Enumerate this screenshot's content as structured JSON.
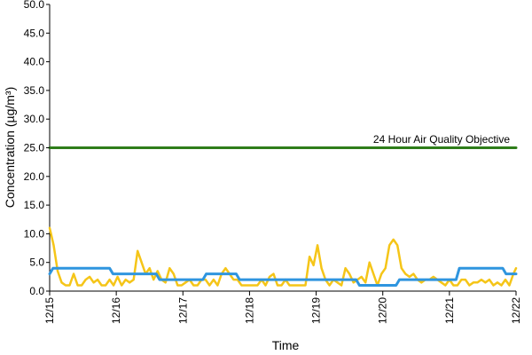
{
  "chart_data": {
    "type": "line",
    "title": "",
    "xlabel": "Time",
    "ylabel": "Concentration (µg/m³)",
    "ylim": [
      0,
      50
    ],
    "y_ticks": [
      "0.0",
      "5.0",
      "10.0",
      "15.0",
      "20.0",
      "25.0",
      "30.0",
      "35.0",
      "40.0",
      "45.0",
      "50.0"
    ],
    "xlim": [
      0,
      7
    ],
    "x_ticks": [
      "12/15",
      "12/16",
      "12/17",
      "12/18",
      "12/19",
      "12/20",
      "12/21",
      "12/22"
    ],
    "grid": false,
    "legend": "none",
    "annotations": [
      {
        "text": "24 Hour Air Quality Objective",
        "x": 6.9,
        "y": 25
      }
    ],
    "series": [
      {
        "color": "#2e7d1a",
        "x": [
          0,
          7
        ],
        "values": [
          25,
          25
        ]
      },
      {
        "color": "#f5c518",
        "x": [
          0,
          0.06,
          0.12,
          0.18,
          0.24,
          0.3,
          0.36,
          0.42,
          0.48,
          0.54,
          0.6,
          0.66,
          0.72,
          0.78,
          0.84,
          0.9,
          0.96,
          1.02,
          1.08,
          1.14,
          1.2,
          1.26,
          1.32,
          1.38,
          1.44,
          1.5,
          1.56,
          1.62,
          1.68,
          1.74,
          1.8,
          1.86,
          1.92,
          1.98,
          2.04,
          2.1,
          2.16,
          2.22,
          2.28,
          2.34,
          2.4,
          2.46,
          2.52,
          2.58,
          2.64,
          2.7,
          2.76,
          2.82,
          2.88,
          2.94,
          3.0,
          3.06,
          3.12,
          3.18,
          3.24,
          3.3,
          3.36,
          3.42,
          3.48,
          3.54,
          3.6,
          3.66,
          3.72,
          3.78,
          3.84,
          3.9,
          3.96,
          4.02,
          4.08,
          4.14,
          4.2,
          4.26,
          4.32,
          4.38,
          4.44,
          4.5,
          4.56,
          4.62,
          4.68,
          4.74,
          4.8,
          4.86,
          4.92,
          4.98,
          5.04,
          5.1,
          5.16,
          5.22,
          5.28,
          5.34,
          5.4,
          5.46,
          5.52,
          5.58,
          5.64,
          5.7,
          5.76,
          5.82,
          5.88,
          5.94,
          6.0,
          6.06,
          6.12,
          6.18,
          6.24,
          6.3,
          6.36,
          6.42,
          6.48,
          6.54,
          6.6,
          6.66,
          6.72,
          6.78,
          6.84,
          6.9,
          6.96,
          7.0
        ],
        "values": [
          11,
          8,
          3.5,
          1.5,
          1,
          1,
          3,
          1,
          1,
          2,
          2.5,
          1.5,
          2,
          1,
          1,
          2,
          1,
          2.5,
          1,
          2,
          1.5,
          2,
          7,
          5,
          3,
          4,
          2,
          3.5,
          2,
          1.5,
          4,
          3,
          1,
          1,
          1.5,
          2,
          1,
          1,
          2,
          2,
          1,
          2,
          1,
          3,
          4,
          3,
          2,
          2,
          1,
          1,
          1,
          1,
          1,
          2,
          1,
          2.5,
          3,
          1,
          1,
          2,
          1,
          1,
          1,
          1,
          1,
          6,
          4.5,
          8,
          4,
          2,
          1,
          2,
          1.5,
          1,
          4,
          3,
          1.5,
          2,
          2.5,
          1.5,
          5,
          3,
          1,
          3,
          4,
          8,
          9,
          8,
          4,
          3,
          2.5,
          3,
          2,
          1.5,
          2,
          2,
          2.5,
          2,
          1.5,
          1,
          2,
          1,
          1,
          2,
          2,
          1,
          1.5,
          1.5,
          2,
          1.5,
          2,
          1,
          1.5,
          1,
          2,
          1,
          3,
          4
        ]
      },
      {
        "color": "#2f95df",
        "x": [
          0,
          0.05,
          0.9,
          0.95,
          1.6,
          1.65,
          2.3,
          2.35,
          2.8,
          2.85,
          4.6,
          4.65,
          5.2,
          5.25,
          6.1,
          6.15,
          6.8,
          6.85,
          7.0
        ],
        "values": [
          3,
          4,
          4,
          3,
          3,
          2,
          2,
          3,
          3,
          2,
          2,
          1,
          1,
          2,
          2,
          4,
          4,
          3,
          3
        ]
      }
    ]
  }
}
